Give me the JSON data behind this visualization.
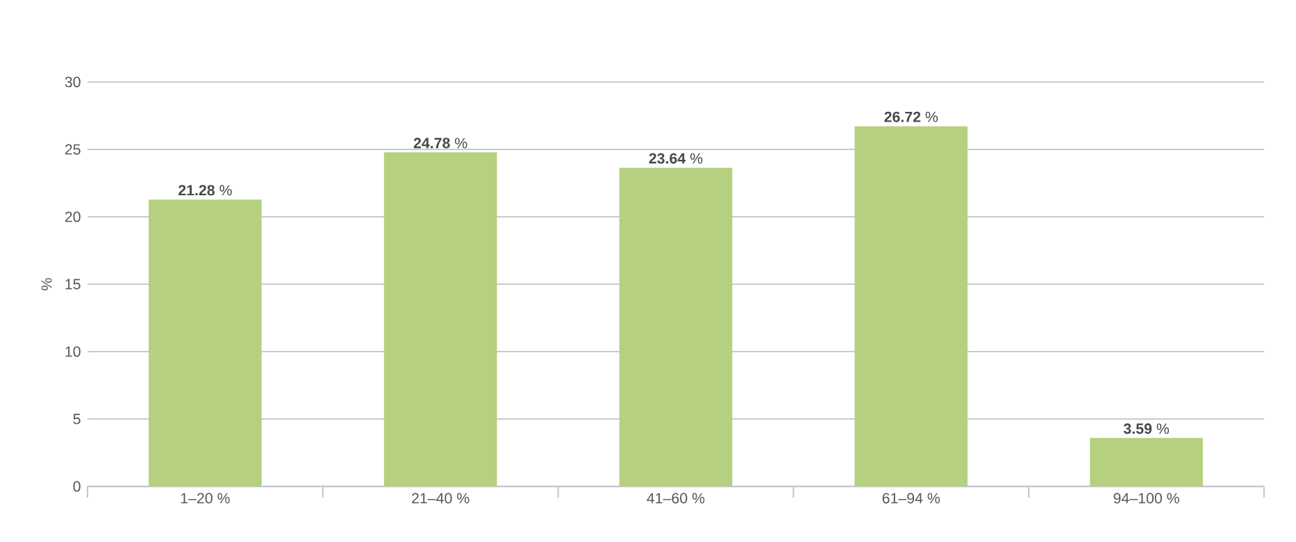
{
  "chart_data": {
    "type": "bar",
    "ylabel": "%",
    "categories": [
      "1–20 %",
      "21–40 %",
      "41–60 %",
      "61–94 %",
      "94–100 %"
    ],
    "values": [
      21.28,
      24.78,
      23.64,
      26.72,
      3.59
    ],
    "value_labels": [
      "**21.28** %",
      "**24.78** %",
      "**23.64** %",
      "**26.72** %",
      "**3.59** %"
    ],
    "color": "#b5d17f",
    "ylim": [
      0,
      30
    ],
    "yticks": [
      0,
      5,
      10,
      15,
      20,
      25,
      30
    ],
    "grid": "y"
  }
}
